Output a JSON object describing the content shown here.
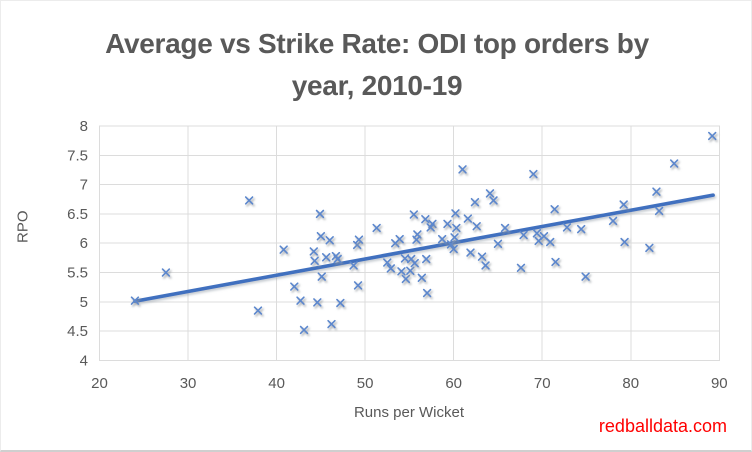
{
  "watermark": "redballdata.com",
  "chart_data": {
    "type": "scatter",
    "title": "Average vs Strike Rate: ODI top orders by year, 2010-19",
    "title_lines": [
      "Average vs Strike Rate: ODI top orders by",
      "year, 2010-19"
    ],
    "xlabel": "Runs per Wicket",
    "ylabel": "RPO",
    "xlim": [
      20,
      90
    ],
    "ylim": [
      4,
      8
    ],
    "x_ticks": [
      20,
      30,
      40,
      50,
      60,
      70,
      80,
      90
    ],
    "y_ticks": [
      4,
      4.5,
      5,
      5.5,
      6,
      6.5,
      7,
      7.5,
      8
    ],
    "grid": true,
    "legend": false,
    "marker": "x",
    "colors": {
      "marker": "#5b87cd",
      "trendline": "#3f6fbf",
      "gridline": "#dcdcdc",
      "plot_border": "#dcdcdc",
      "text": "#595959",
      "title": "#595959",
      "watermark": "#ff0000"
    },
    "trendline": {
      "x1": 24.0,
      "y1": 5.01,
      "x2": 89.3,
      "y2": 6.82
    },
    "points": [
      [
        24.0,
        5.02
      ],
      [
        27.5,
        5.5
      ],
      [
        36.9,
        6.73
      ],
      [
        37.9,
        4.85
      ],
      [
        40.8,
        5.89
      ],
      [
        42.0,
        5.26
      ],
      [
        42.7,
        5.02
      ],
      [
        43.1,
        4.52
      ],
      [
        44.2,
        5.86
      ],
      [
        44.3,
        5.7
      ],
      [
        44.6,
        4.99
      ],
      [
        44.9,
        6.5
      ],
      [
        45.0,
        6.12
      ],
      [
        45.1,
        5.43
      ],
      [
        45.6,
        5.76
      ],
      [
        46.0,
        6.05
      ],
      [
        46.2,
        4.62
      ],
      [
        46.7,
        5.78
      ],
      [
        46.9,
        5.73
      ],
      [
        47.2,
        4.98
      ],
      [
        48.7,
        5.62
      ],
      [
        49.1,
        5.97
      ],
      [
        49.3,
        6.06
      ],
      [
        49.2,
        5.28
      ],
      [
        51.3,
        6.26
      ],
      [
        52.5,
        5.67
      ],
      [
        52.9,
        5.57
      ],
      [
        53.4,
        6.0
      ],
      [
        53.9,
        6.07
      ],
      [
        54.1,
        5.52
      ],
      [
        54.6,
        5.39
      ],
      [
        55.1,
        5.53
      ],
      [
        54.5,
        5.74
      ],
      [
        55.2,
        5.73
      ],
      [
        55.6,
        5.66
      ],
      [
        55.5,
        6.49
      ],
      [
        56.8,
        6.41
      ],
      [
        57.6,
        6.33
      ],
      [
        55.9,
        6.15
      ],
      [
        55.8,
        6.06
      ],
      [
        56.4,
        5.41
      ],
      [
        56.9,
        5.73
      ],
      [
        57.0,
        5.15
      ],
      [
        57.4,
        6.27
      ],
      [
        58.7,
        6.07
      ],
      [
        59.3,
        6.33
      ],
      [
        59.7,
        5.98
      ],
      [
        60.0,
        5.9
      ],
      [
        60.1,
        6.1
      ],
      [
        60.2,
        6.51
      ],
      [
        60.3,
        6.26
      ],
      [
        61.0,
        7.26
      ],
      [
        61.6,
        6.42
      ],
      [
        61.9,
        5.84
      ],
      [
        62.4,
        6.7
      ],
      [
        62.6,
        6.29
      ],
      [
        63.2,
        5.77
      ],
      [
        63.6,
        5.62
      ],
      [
        64.1,
        6.85
      ],
      [
        64.5,
        6.73
      ],
      [
        65.0,
        5.99
      ],
      [
        65.8,
        6.26
      ],
      [
        67.6,
        5.58
      ],
      [
        67.9,
        6.14
      ],
      [
        69.0,
        7.18
      ],
      [
        69.4,
        6.17
      ],
      [
        69.6,
        6.04
      ],
      [
        70.2,
        6.12
      ],
      [
        70.9,
        6.02
      ],
      [
        71.4,
        6.58
      ],
      [
        71.5,
        5.68
      ],
      [
        72.8,
        6.27
      ],
      [
        74.4,
        6.24
      ],
      [
        74.9,
        5.43
      ],
      [
        78.0,
        6.38
      ],
      [
        79.2,
        6.66
      ],
      [
        79.3,
        6.02
      ],
      [
        82.1,
        5.92
      ],
      [
        82.9,
        6.88
      ],
      [
        83.2,
        6.55
      ],
      [
        84.9,
        7.36
      ],
      [
        89.2,
        7.83
      ]
    ]
  }
}
